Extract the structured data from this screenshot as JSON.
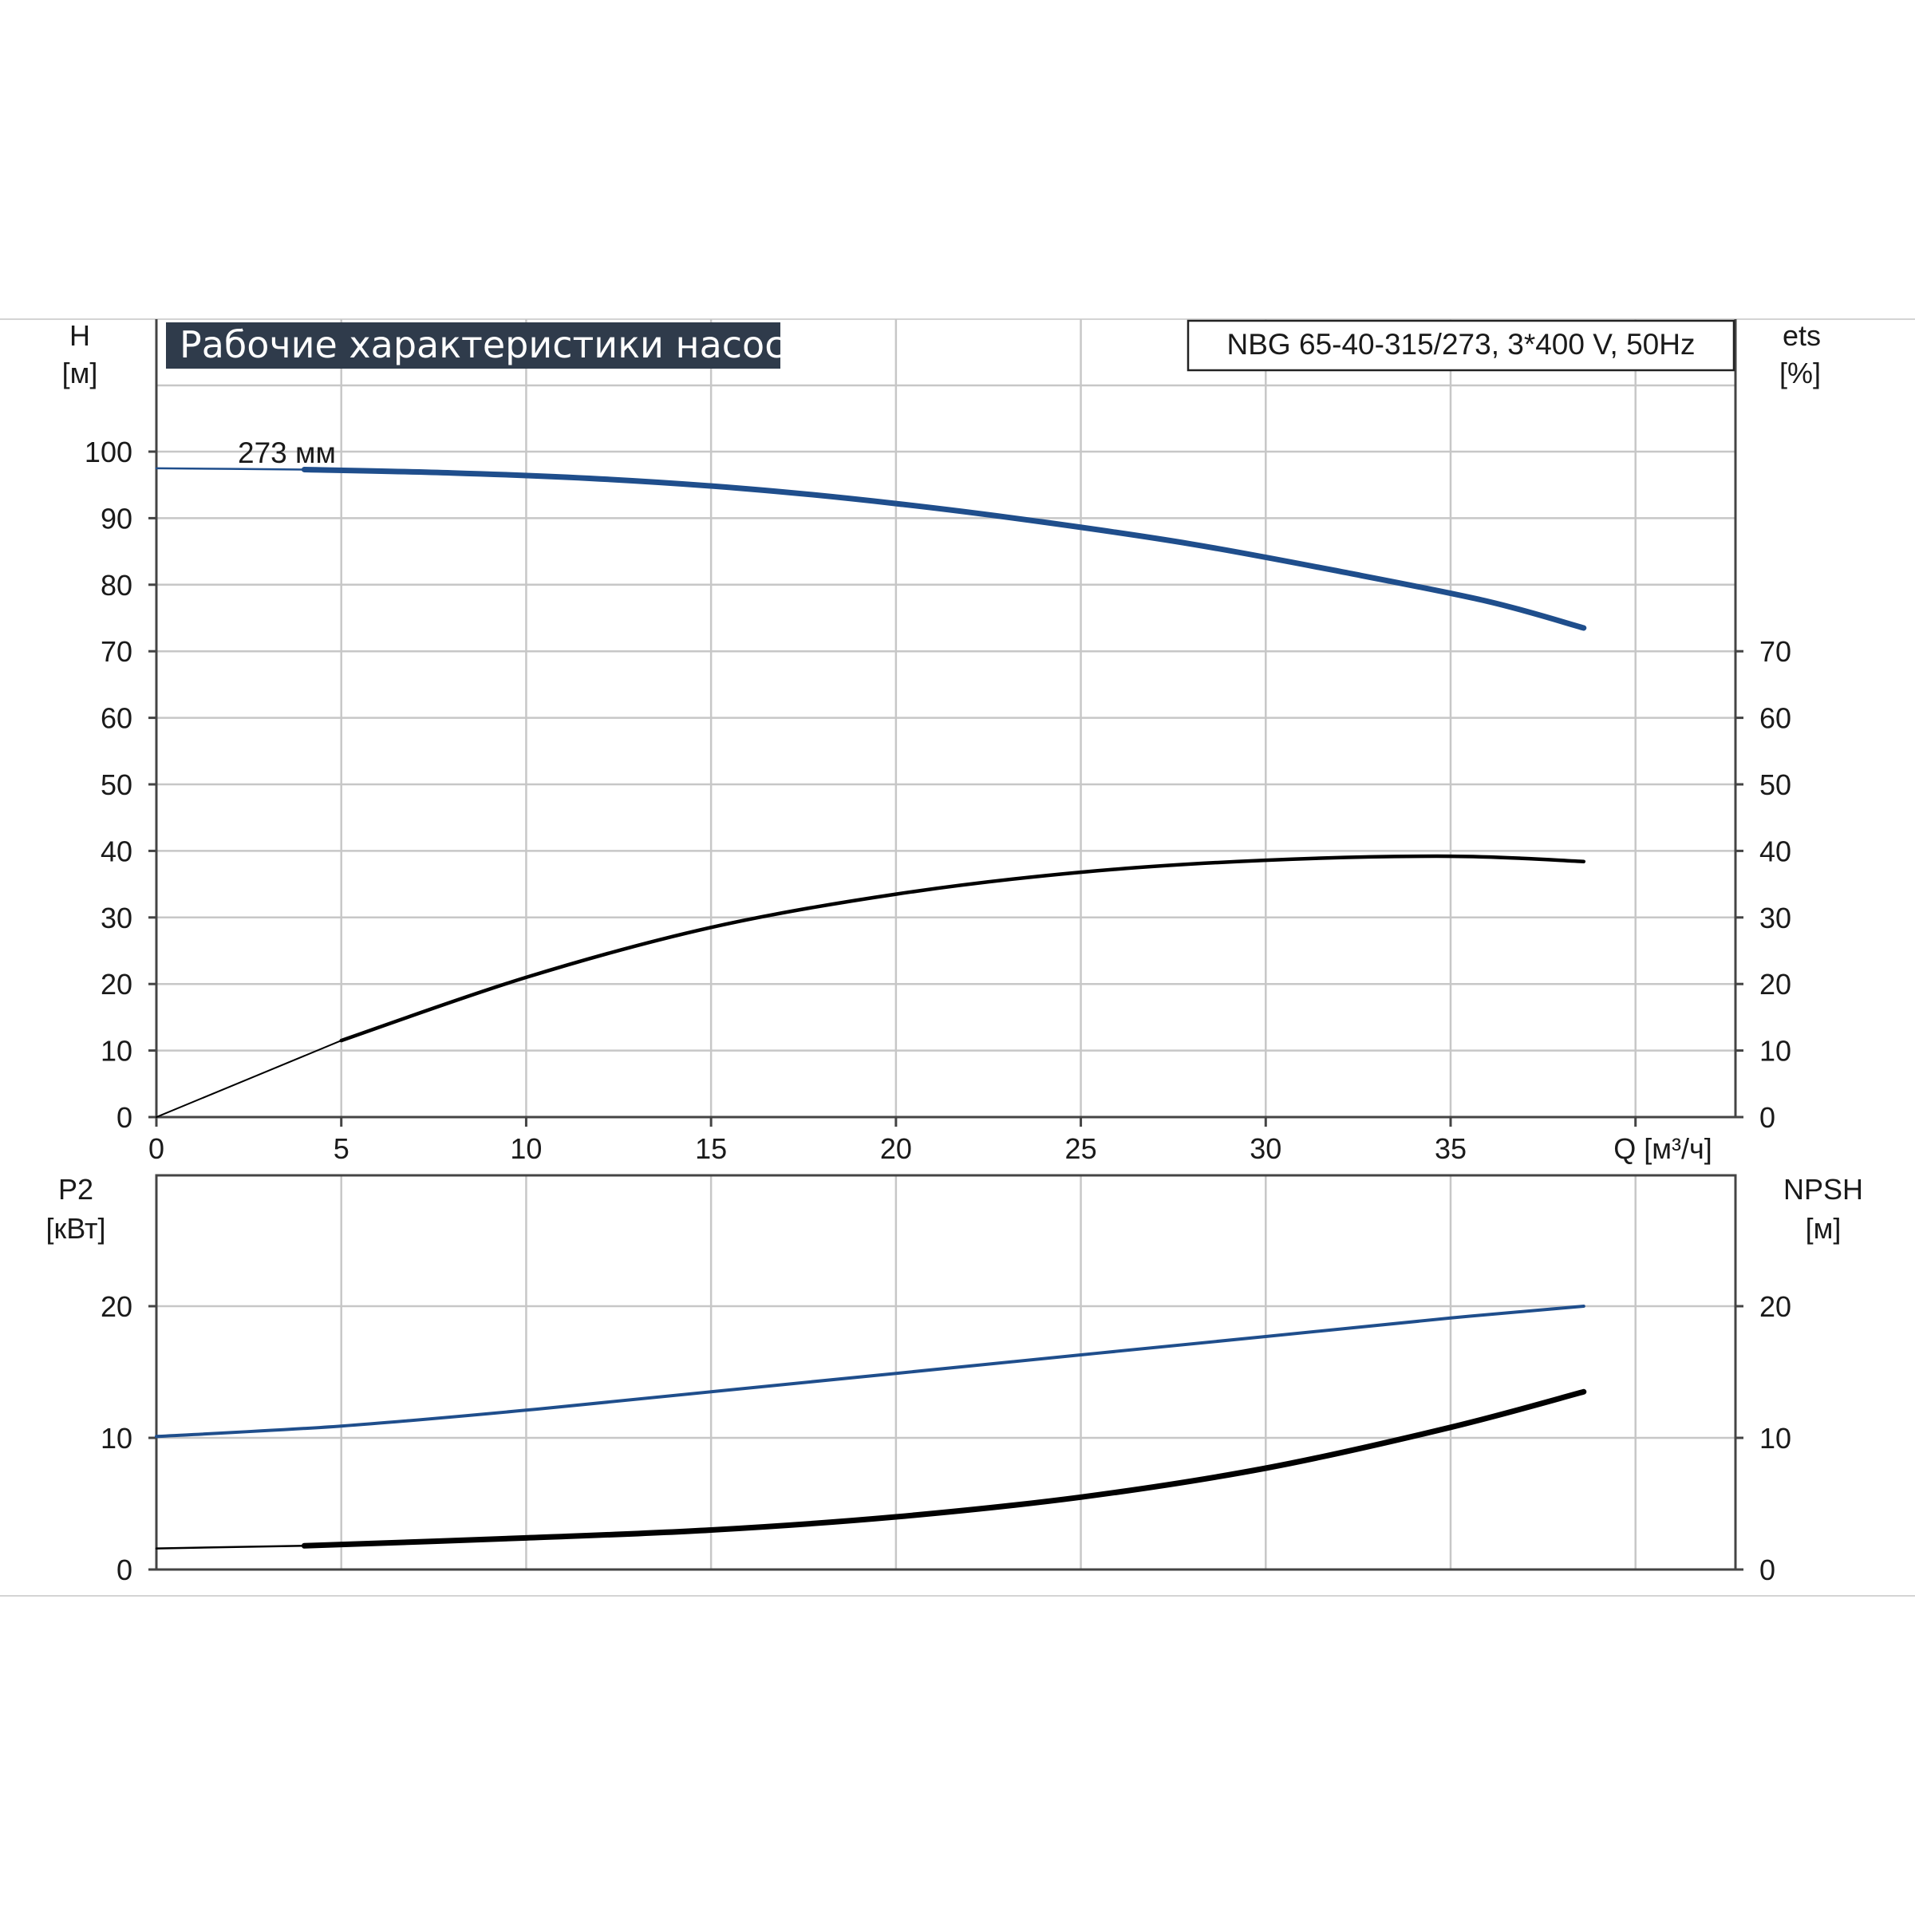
{
  "chart_data": [
    {
      "type": "line",
      "title": "Рабочие характеристики насоса",
      "subtitle": "NBG 65-40-315/273, 3*400 V, 50Hz",
      "xlabel": "Q [м³/ч]",
      "xlabel_text": "Q [м³/ч]",
      "xlim": [
        0,
        42
      ],
      "xticks": [
        "0",
        "5",
        "10",
        "15",
        "20",
        "25",
        "30",
        "35"
      ],
      "ylabel": "H",
      "ylabel_unit": "[м]",
      "ylim": [
        0,
        100
      ],
      "yticks": [
        "0",
        "10",
        "20",
        "30",
        "40",
        "50",
        "60",
        "70",
        "80",
        "90",
        "100"
      ],
      "y2label": "ets",
      "y2label_unit": "[%]",
      "y2ticks": [
        "0",
        "10",
        "20",
        "30",
        "40",
        "50",
        "60",
        "70"
      ],
      "grid": true,
      "annotations": [
        "273 мм"
      ],
      "series": [
        {
          "name": "273 мм",
          "axis": "left",
          "color": "#1f4e8c",
          "x": [
            0,
            4,
            8,
            12,
            16,
            20,
            24,
            28,
            32,
            36,
            38.6
          ],
          "y": [
            97.5,
            97.3,
            96.8,
            95.9,
            94.4,
            92.2,
            89.4,
            86.1,
            82.0,
            77.5,
            73.5
          ]
        },
        {
          "axis": "right",
          "color": "#000000",
          "x": [
            0,
            5,
            10,
            15,
            20,
            25,
            30,
            35,
            38.6
          ],
          "y": [
            0,
            11.5,
            21,
            28.5,
            33.5,
            36.8,
            38.6,
            39.2,
            38.4
          ]
        }
      ]
    },
    {
      "type": "line",
      "xlim": [
        0,
        42
      ],
      "ylabel": "P2",
      "ylabel_unit": "[кВт]",
      "ylim": [
        0,
        30
      ],
      "yticks": [
        "0",
        "10",
        "20"
      ],
      "y2label": "NPSH",
      "y2label_unit": "[м]",
      "y2ticks": [
        "0",
        "10",
        "20"
      ],
      "grid": true,
      "series": [
        {
          "axis": "left",
          "color": "#1f4e8c",
          "x": [
            0,
            5,
            10,
            15,
            20,
            25,
            30,
            35,
            38.6
          ],
          "y": [
            10.1,
            10.9,
            12.1,
            13.5,
            14.9,
            16.3,
            17.7,
            19.1,
            20.0
          ]
        },
        {
          "axis": "right",
          "color": "#000000",
          "x": [
            0,
            4,
            10,
            15,
            20,
            25,
            30,
            35,
            38.6
          ],
          "y": [
            1.6,
            1.8,
            2.4,
            3.0,
            4.0,
            5.5,
            7.7,
            10.8,
            13.5
          ]
        }
      ]
    }
  ]
}
